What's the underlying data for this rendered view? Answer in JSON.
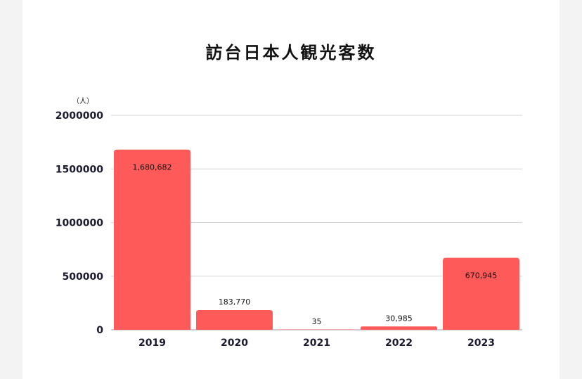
{
  "chart_data": {
    "type": "bar",
    "title": "訪台日本人観光客数",
    "ylabel": "（人）",
    "categories": [
      "2019",
      "2020",
      "2021",
      "2022",
      "2023"
    ],
    "values": [
      1680682,
      183770,
      35,
      30985,
      670945
    ],
    "value_labels": [
      "1,680,682",
      "183,770",
      "35",
      "30,985",
      "670,945"
    ],
    "ylim": [
      0,
      2000000
    ],
    "yticks": [
      0,
      500000,
      1000000,
      1500000,
      2000000
    ],
    "ytick_labels": [
      "0",
      "500000",
      "1000000",
      "1500000",
      "2000000"
    ],
    "grid": true,
    "legend": "none",
    "bar_color": "#ff5a5a"
  }
}
